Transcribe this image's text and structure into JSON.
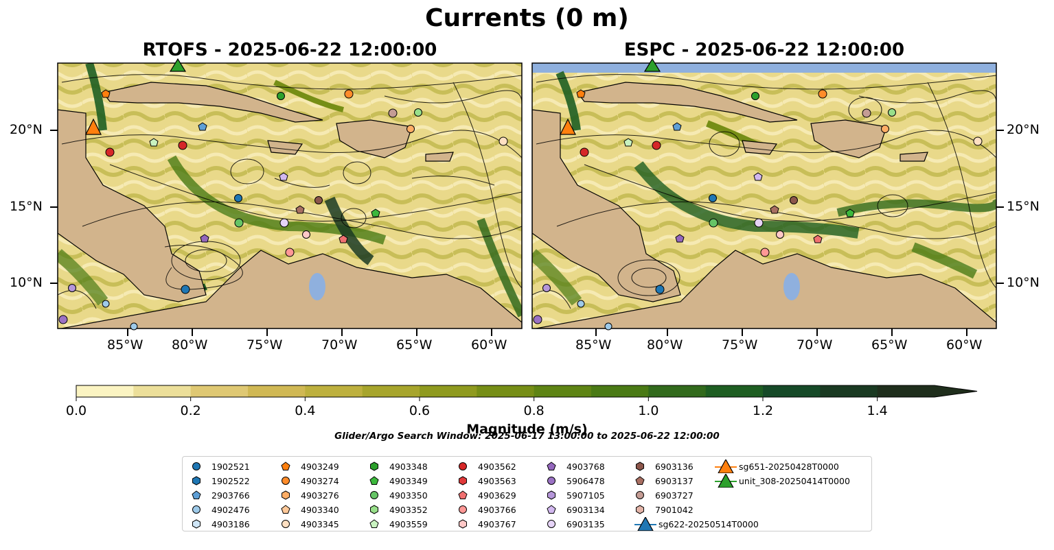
{
  "figure": {
    "title": "Currents (0 m)",
    "panels": [
      {
        "title": "RTOFS - 2025-06-22 12:00:00"
      },
      {
        "title": "ESPC - 2025-06-22 12:00:00"
      }
    ],
    "lon_labels": [
      "85°W",
      "80°W",
      "75°W",
      "70°W",
      "65°W",
      "60°W"
    ],
    "lat_labels": [
      "20°N",
      "15°N",
      "10°N"
    ],
    "colorbar": {
      "label": "Magnitude (m/s)",
      "ticks": [
        "0.0",
        "0.2",
        "0.4",
        "0.6",
        "0.8",
        "1.0",
        "1.2",
        "1.4"
      ],
      "range": [
        0,
        1.5
      ],
      "colors": [
        "#fbf4c2",
        "#ecdf9a",
        "#dfc873",
        "#d0b854",
        "#bdb03e",
        "#a7a52c",
        "#8f9a1f",
        "#768e16",
        "#5e8414",
        "#4a7a15",
        "#326a1c",
        "#1e5e22",
        "#164a28",
        "#1a3a22",
        "#1f2e1c"
      ],
      "extend": "max"
    },
    "search_window": "Glider/Argo Search Window: 2025-06-17 13:00:00 to 2025-06-22 12:00:00"
  },
  "legend": [
    {
      "label": "1902521",
      "marker": "circle",
      "color": "#1f77b4"
    },
    {
      "label": "1902522",
      "marker": "hexagon",
      "color": "#1f77b4"
    },
    {
      "label": "2903766",
      "marker": "pentagon",
      "color": "#5e9fd6"
    },
    {
      "label": "4902476",
      "marker": "circle",
      "color": "#9ecae9"
    },
    {
      "label": "4903186",
      "marker": "hexagon",
      "color": "#cfe6f7"
    },
    {
      "label": "4903249",
      "marker": "pentagon",
      "color": "#ff7f0e"
    },
    {
      "label": "4903274",
      "marker": "circle",
      "color": "#ff8c2a"
    },
    {
      "label": "4903276",
      "marker": "hexagon",
      "color": "#ffae66"
    },
    {
      "label": "4903340",
      "marker": "pentagon",
      "color": "#ffc999"
    },
    {
      "label": "4903345",
      "marker": "circle",
      "color": "#ffe0c2"
    },
    {
      "label": "4903348",
      "marker": "hexagon",
      "color": "#2ca02c"
    },
    {
      "label": "4903349",
      "marker": "pentagon",
      "color": "#3cb83c"
    },
    {
      "label": "4903350",
      "marker": "circle",
      "color": "#66c466"
    },
    {
      "label": "4903352",
      "marker": "hexagon",
      "color": "#98df8a"
    },
    {
      "label": "4903559",
      "marker": "pentagon",
      "color": "#c9f2c0"
    },
    {
      "label": "4903562",
      "marker": "circle",
      "color": "#d62728"
    },
    {
      "label": "4903563",
      "marker": "hexagon",
      "color": "#e0393a"
    },
    {
      "label": "4903629",
      "marker": "pentagon",
      "color": "#f07070"
    },
    {
      "label": "4903766",
      "marker": "circle",
      "color": "#ff9896"
    },
    {
      "label": "4903767",
      "marker": "hexagon",
      "color": "#ffc8c7"
    },
    {
      "label": "4903768",
      "marker": "pentagon",
      "color": "#9467bd"
    },
    {
      "label": "5906478",
      "marker": "circle",
      "color": "#9b72c4"
    },
    {
      "label": "5907105",
      "marker": "hexagon",
      "color": "#b596d9"
    },
    {
      "label": "6903134",
      "marker": "pentagon",
      "color": "#d2b8ef"
    },
    {
      "label": "6903135",
      "marker": "circle",
      "color": "#e6d4f7"
    },
    {
      "label": "6903136",
      "marker": "hexagon",
      "color": "#8c564b"
    },
    {
      "label": "6903137",
      "marker": "pentagon",
      "color": "#a86f62"
    },
    {
      "label": "6903727",
      "marker": "circle",
      "color": "#c49c94"
    },
    {
      "label": "7901042",
      "marker": "hexagon",
      "color": "#e3b4a8"
    },
    {
      "label": "sg622-20250514T0000",
      "marker": "triangle",
      "color": "#1f77b4"
    },
    {
      "label": "sg651-20250428T0000",
      "marker": "triangle",
      "color": "#ff7f0e"
    },
    {
      "label": "unit_308-20250414T0000",
      "marker": "triangle",
      "color": "#2ca02c"
    }
  ]
}
